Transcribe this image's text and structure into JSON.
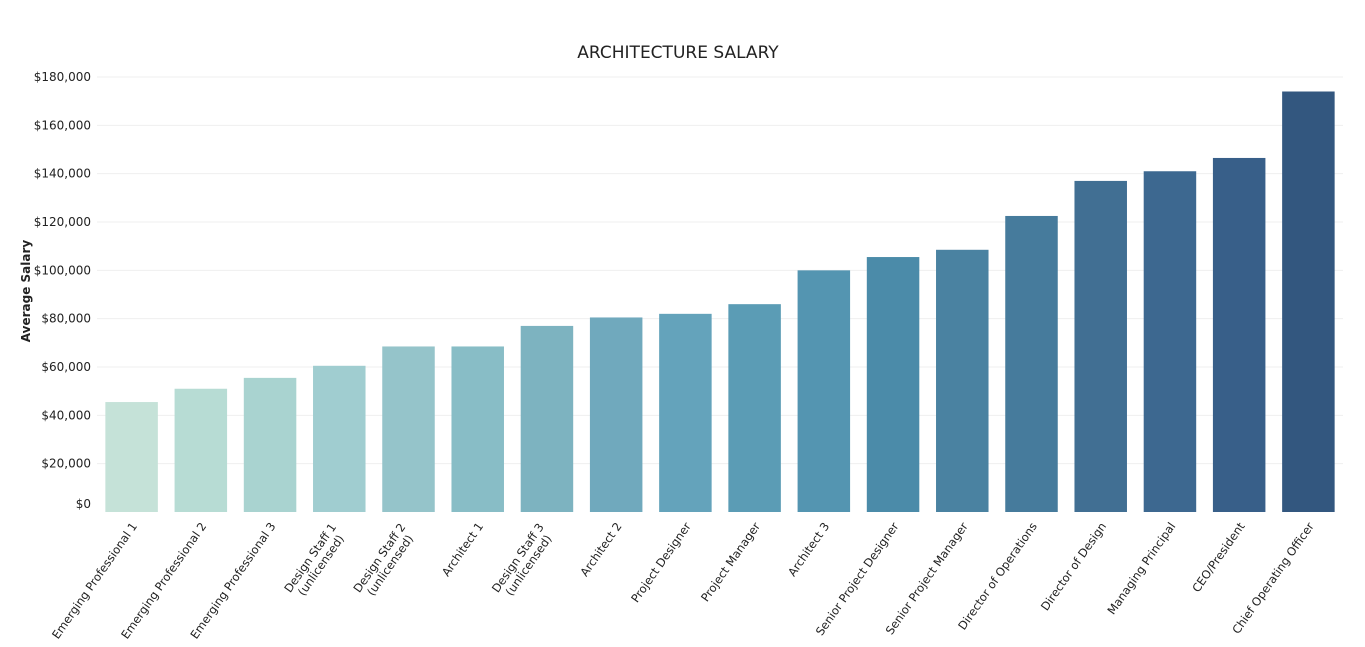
{
  "chart_data": {
    "type": "bar",
    "title": "ARCHITECTURE SALARY",
    "xlabel": "",
    "ylabel": "Average Salary",
    "ylim": [
      0,
      180000
    ],
    "yticks": [
      0,
      20000,
      40000,
      60000,
      80000,
      100000,
      120000,
      140000,
      160000,
      180000
    ],
    "ytick_labels": [
      "$0",
      "$20,000",
      "$40,000",
      "$60,000",
      "$80,000",
      "$100,000",
      "$120,000",
      "$140,000",
      "$160,000",
      "$180,000"
    ],
    "grid": true,
    "categories": [
      [
        "Emerging Professional 1"
      ],
      [
        "Emerging Professional 2"
      ],
      [
        "Emerging Professional 3"
      ],
      [
        "Design Staff 1",
        "(unlicensed)"
      ],
      [
        "Design Staff 2",
        "(unlicensed)"
      ],
      [
        "Architect 1"
      ],
      [
        "Design Staff 3",
        "(unlicensed)"
      ],
      [
        "Architect 2"
      ],
      [
        "Project Designer"
      ],
      [
        "Project Manager"
      ],
      [
        "Architect 3"
      ],
      [
        "Senior Project Designer"
      ],
      [
        "Senior Project Manager"
      ],
      [
        "Director of Operations"
      ],
      [
        "Director of Design"
      ],
      [
        "Managing Principal"
      ],
      [
        "CEO/President"
      ],
      [
        "Chief Operating Officer"
      ]
    ],
    "values": [
      45500,
      51000,
      55500,
      60500,
      68500,
      68500,
      77000,
      80500,
      82000,
      86000,
      100000,
      105500,
      108500,
      122500,
      137000,
      141000,
      146500,
      174000
    ],
    "colors": [
      "#c5e2d8",
      "#b7dcd4",
      "#a9d3d0",
      "#a0cdd0",
      "#95c4ca",
      "#88bdc6",
      "#7db3c0",
      "#70a9bd",
      "#64a3bb",
      "#5b9cb5",
      "#5495b1",
      "#4b8ba9",
      "#4a82a1",
      "#467b9c",
      "#416f93",
      "#3d6890",
      "#385f89",
      "#33577f"
    ]
  }
}
